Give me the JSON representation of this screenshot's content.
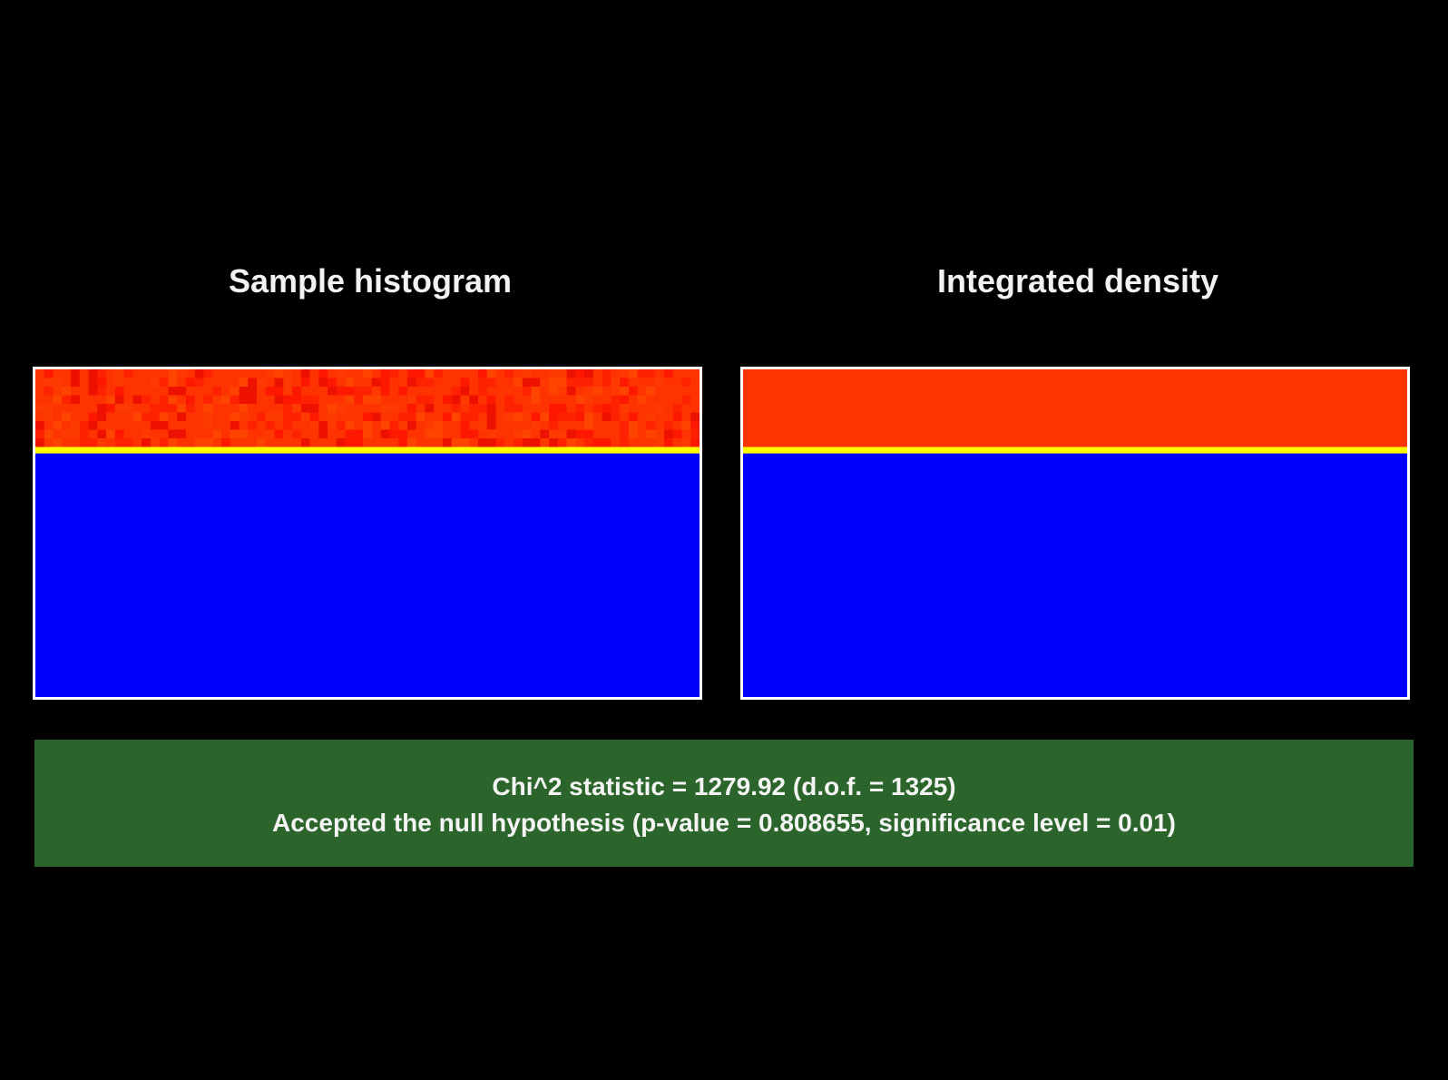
{
  "panels": {
    "left": {
      "title": "Sample histogram"
    },
    "right": {
      "title": "Integrated density"
    }
  },
  "chart_data": [
    {
      "type": "heatmap",
      "title": "Sample histogram",
      "description_of_cells": "noisy red/orange band in top rows, yellow boundary row, blue elsewhere",
      "grid": {
        "columns": 75,
        "rows": 38,
        "filled_rows": 9,
        "boundary_row": 9
      },
      "colors": {
        "low": "#0000ff",
        "boundary": "#ffff00",
        "high_base": "#ff3300",
        "high_alt": [
          "#ff2200",
          "#ff3a00",
          "#ff1800",
          "#ff4400",
          "#ee1100"
        ]
      }
    },
    {
      "type": "heatmap",
      "title": "Integrated density",
      "grid": {
        "columns": 75,
        "rows": 38,
        "filled_rows": 9,
        "boundary_row": 9
      },
      "colors": {
        "low": "#0000ff",
        "boundary": "#ffff00",
        "high_base": "#ff3300"
      }
    }
  ],
  "result": {
    "line1": "Chi^2 statistic = 1279.92 (d.o.f. = 1325)",
    "line2": "Accepted the null hypothesis (p-value = 0.808655, significance level = 0.01)",
    "background": "#2b652b"
  }
}
